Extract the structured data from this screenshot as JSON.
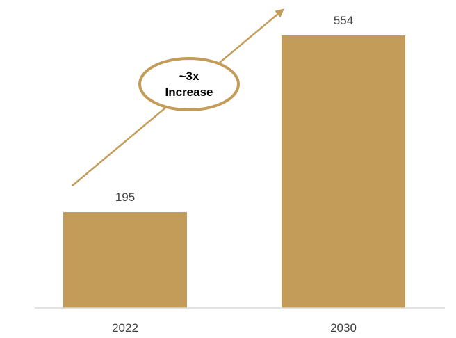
{
  "chart_data": {
    "type": "bar",
    "categories": [
      "2022",
      "2030"
    ],
    "values": [
      195,
      554
    ],
    "data_labels": [
      "195",
      "554"
    ],
    "ylim": [
      0,
      554
    ],
    "grid": false,
    "annotation": {
      "line1": "~3x",
      "line2": "Increase"
    }
  },
  "colors": {
    "bar": "#C49C5A",
    "arrow": "#C49C5A",
    "callout_border": "#C49C5A",
    "axis": "#D9D9D9",
    "label_text": "#404040"
  }
}
